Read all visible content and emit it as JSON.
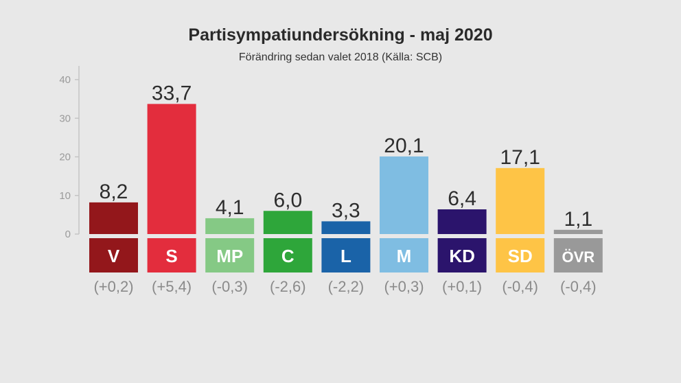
{
  "chart_data": {
    "type": "bar",
    "title": "Partisympatiundersökning - maj 2020",
    "subtitle": "Förändring sedan valet 2018 (Källa: SCB)",
    "categories": [
      "V",
      "S",
      "MP",
      "C",
      "L",
      "M",
      "KD",
      "SD",
      "ÖVR"
    ],
    "values": [
      8.2,
      33.7,
      4.1,
      6.0,
      3.3,
      20.1,
      6.4,
      17.1,
      1.1
    ],
    "value_labels": [
      "8,2",
      "33,7",
      "4,1",
      "6,0",
      "3,3",
      "20,1",
      "6,4",
      "17,1",
      "1,1"
    ],
    "change_labels": [
      "(+0,2)",
      "(+5,4)",
      "(-0,3)",
      "(-2,6)",
      "(-2,2)",
      "(+0,3)",
      "(+0,1)",
      "(-0,4)",
      "(-0,4)"
    ],
    "colors": [
      "#93171b",
      "#e32d3d",
      "#85c985",
      "#2ea63a",
      "#1a63a8",
      "#7fbde2",
      "#2b146c",
      "#fec446",
      "#999999"
    ],
    "ylim": [
      0,
      40
    ],
    "yticks": [
      "0",
      "10",
      "20",
      "30",
      "40"
    ],
    "xlabel": "",
    "ylabel": "",
    "grid": false,
    "legend": "none"
  }
}
